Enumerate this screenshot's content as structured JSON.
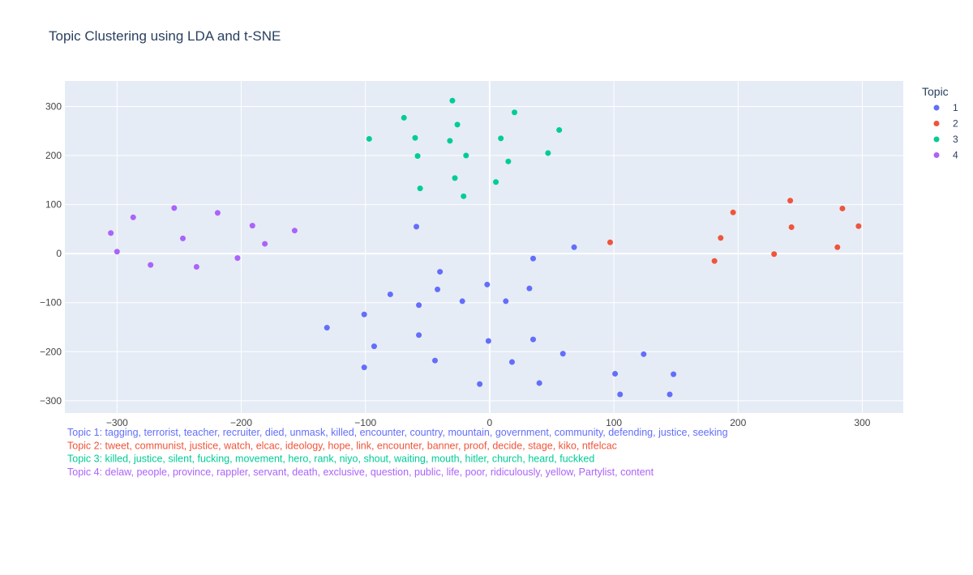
{
  "chart_data": {
    "type": "scatter",
    "title": "Topic Clustering using LDA and t-SNE",
    "xlabel": "",
    "ylabel": "",
    "xlim": [
      -342,
      333
    ],
    "ylim": [
      -325,
      352
    ],
    "xticks": [
      -300,
      -200,
      -100,
      0,
      100,
      200,
      300
    ],
    "yticks": [
      -300,
      -200,
      -100,
      0,
      100,
      200,
      300
    ],
    "grid": true,
    "legend": {
      "title": "Topic",
      "placement": "right"
    },
    "series": [
      {
        "name": "1",
        "color": "#636efa",
        "points": [
          [
            -59,
            55
          ],
          [
            68,
            13
          ],
          [
            35,
            -10
          ],
          [
            -40,
            -37
          ],
          [
            -2,
            -63
          ],
          [
            32,
            -71
          ],
          [
            -42,
            -73
          ],
          [
            -80,
            -83
          ],
          [
            -57,
            -105
          ],
          [
            -22,
            -97
          ],
          [
            13,
            -97
          ],
          [
            -131,
            -151
          ],
          [
            -101,
            -124
          ],
          [
            -57,
            -166
          ],
          [
            35,
            -175
          ],
          [
            -1,
            -178
          ],
          [
            -93,
            -189
          ],
          [
            -101,
            -232
          ],
          [
            -44,
            -218
          ],
          [
            18,
            -221
          ],
          [
            59,
            -204
          ],
          [
            124,
            -205
          ],
          [
            -8,
            -266
          ],
          [
            40,
            -264
          ],
          [
            101,
            -245
          ],
          [
            148,
            -246
          ],
          [
            105,
            -287
          ],
          [
            145,
            -287
          ]
        ]
      },
      {
        "name": "2",
        "color": "#ef553b",
        "points": [
          [
            97,
            23
          ],
          [
            181,
            -15
          ],
          [
            186,
            32
          ],
          [
            196,
            84
          ],
          [
            229,
            -1
          ],
          [
            242,
            108
          ],
          [
            243,
            54
          ],
          [
            280,
            13
          ],
          [
            284,
            92
          ],
          [
            297,
            56
          ]
        ]
      },
      {
        "name": "3",
        "color": "#00cc96",
        "points": [
          [
            -30,
            312
          ],
          [
            20,
            288
          ],
          [
            -69,
            277
          ],
          [
            -26,
            263
          ],
          [
            56,
            252
          ],
          [
            -60,
            236
          ],
          [
            9,
            235
          ],
          [
            -97,
            234
          ],
          [
            -32,
            230
          ],
          [
            47,
            205
          ],
          [
            -58,
            199
          ],
          [
            -19,
            200
          ],
          [
            15,
            188
          ],
          [
            -28,
            154
          ],
          [
            5,
            146
          ],
          [
            -56,
            133
          ],
          [
            -21,
            117
          ]
        ]
      },
      {
        "name": "4",
        "color": "#ab63fa",
        "points": [
          [
            -305,
            42
          ],
          [
            -287,
            74
          ],
          [
            -254,
            93
          ],
          [
            -219,
            83
          ],
          [
            -247,
            31
          ],
          [
            -191,
            57
          ],
          [
            -157,
            47
          ],
          [
            -300,
            4
          ],
          [
            -273,
            -23
          ],
          [
            -236,
            -27
          ],
          [
            -203,
            -9
          ],
          [
            -181,
            20
          ]
        ]
      }
    ],
    "annotations": [
      {
        "text": "Topic 1: tagging, terrorist, teacher, recruiter, died, unmask, killed, encounter, country, mountain, government, community, defending, justice, seeking",
        "color": "#636efa"
      },
      {
        "text": "Topic 2: tweet, communist, justice, watch, elcac, ideology, hope, link, encounter, banner, proof, decide, stage, kiko, ntfelcac",
        "color": "#ef553b"
      },
      {
        "text": "Topic 3: killed, justice, silent, fucking, movement, hero, rank, niyo, shout, waiting, mouth, hitler, church, heard, fuckked",
        "color": "#00cc96"
      },
      {
        "text": "Topic 4: delaw, people, province, rappler, servant, death, exclusive, question, public, life, poor, ridiculously, yellow, Partylist, content",
        "color": "#ab63fa"
      }
    ]
  }
}
